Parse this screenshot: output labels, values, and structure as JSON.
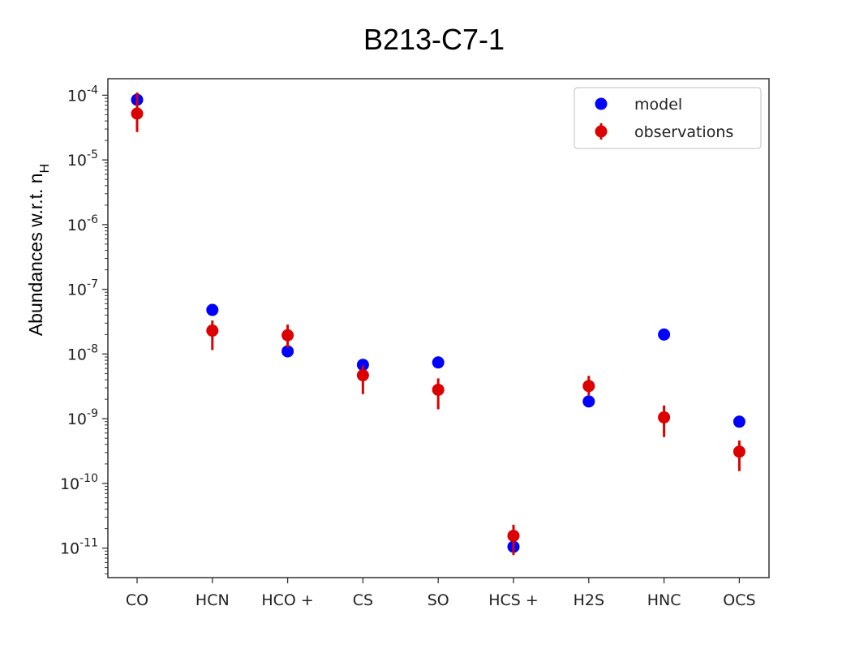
{
  "chart_data": {
    "type": "scatter",
    "title": "B213-C7-1",
    "xlabel": "",
    "ylabel": "Abundances w.r.t. n",
    "ylabel_sub": "H",
    "yscale": "log",
    "ylim": [
      3.5e-12,
      0.00018
    ],
    "yticks": [
      {
        "exp": "-4",
        "value": 0.0001
      },
      {
        "exp": "-5",
        "value": 1e-05
      },
      {
        "exp": "-6",
        "value": 1e-06
      },
      {
        "exp": "-7",
        "value": 1e-07
      },
      {
        "exp": "-8",
        "value": 1e-08
      },
      {
        "exp": "-9",
        "value": 1e-09
      },
      {
        "exp": "-10",
        "value": 1e-10
      },
      {
        "exp": "-11",
        "value": 1e-11
      }
    ],
    "tick_base": "10",
    "categories": [
      "CO",
      "HCN",
      "HCO +",
      "CS",
      "SO",
      "HCS +",
      "H2S",
      "HNC",
      "OCS"
    ],
    "series": [
      {
        "name": "model",
        "color": "#0000ff",
        "values": [
          8.5e-05,
          4.8e-08,
          1.1e-08,
          6.8e-09,
          7.4e-09,
          1.05e-11,
          1.85e-09,
          2e-08,
          9e-10
        ]
      },
      {
        "name": "observations",
        "color": "#dd0000",
        "values": [
          5.2e-05,
          2.3e-08,
          1.95e-08,
          4.7e-09,
          2.8e-09,
          1.55e-11,
          3.2e-09,
          1.05e-09,
          3.1e-10
        ],
        "err_low": [
          2.7e-05,
          1.15e-08,
          1.25e-08,
          2.4e-09,
          1.4e-09,
          7.8e-12,
          2.3e-09,
          5.2e-10,
          1.55e-10
        ],
        "err_high": [
          0.00011,
          3.3e-08,
          2.85e-08,
          6.6e-09,
          4.2e-09,
          2.3e-11,
          4.6e-09,
          1.6e-09,
          4.6e-10
        ]
      }
    ],
    "grid": false,
    "legend": {
      "position": "top-right",
      "entries": [
        "model",
        "observations"
      ]
    }
  }
}
